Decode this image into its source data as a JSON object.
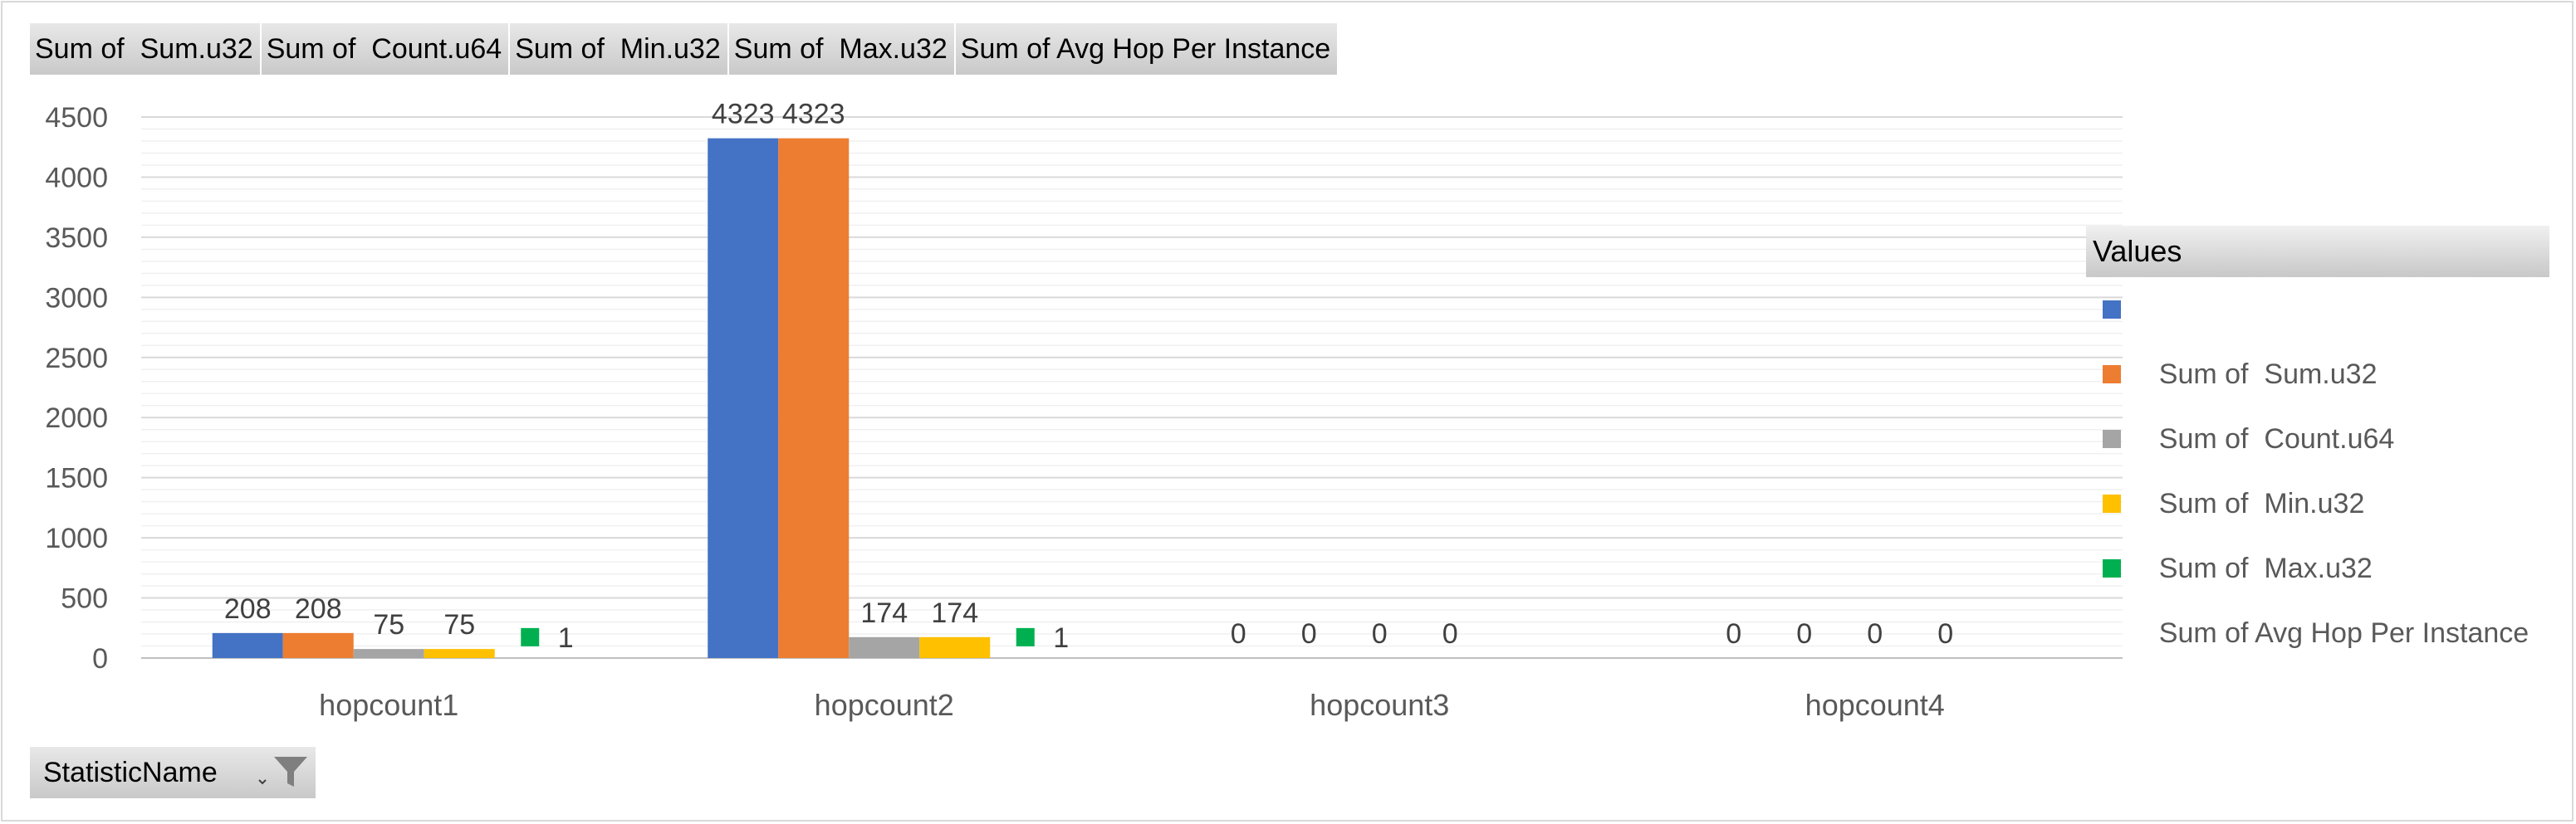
{
  "field_buttons": [
    {
      "label": "Sum of  Sum.u32"
    },
    {
      "label": "Sum of  Count.u64"
    },
    {
      "label": "Sum of  Min.u32"
    },
    {
      "label": "Sum of  Max.u32"
    },
    {
      "label": "Sum of Avg Hop Per Instance"
    }
  ],
  "filter": {
    "label": "StatisticName",
    "icon": "filter-funnel-icon"
  },
  "legend": {
    "title": "Values"
  },
  "chart_data": {
    "type": "bar",
    "categories": [
      "hopcount1",
      "hopcount2",
      "hopcount3",
      "hopcount4"
    ],
    "ylim": [
      0,
      4500
    ],
    "yticks": [
      0,
      500,
      1000,
      1500,
      2000,
      2500,
      3000,
      3500,
      4000,
      4500
    ],
    "grid": true,
    "legend_position": "right",
    "series": [
      {
        "name": "Sum of  Sum.u32",
        "color": "#4472c4",
        "values": [
          208,
          4323,
          0,
          0
        ],
        "mark": "bar"
      },
      {
        "name": "Sum of  Count.u64",
        "color": "#ed7d31",
        "values": [
          208,
          4323,
          0,
          0
        ],
        "mark": "bar"
      },
      {
        "name": "Sum of  Min.u32",
        "color": "#a5a5a5",
        "values": [
          75,
          174,
          0,
          0
        ],
        "mark": "bar"
      },
      {
        "name": "Sum of  Max.u32",
        "color": "#ffc000",
        "values": [
          75,
          174,
          0,
          0
        ],
        "mark": "bar"
      },
      {
        "name": "Sum of Avg Hop Per Instance",
        "color": "#00b050",
        "values": [
          1,
          1,
          null,
          null
        ],
        "mark": "point"
      }
    ]
  }
}
